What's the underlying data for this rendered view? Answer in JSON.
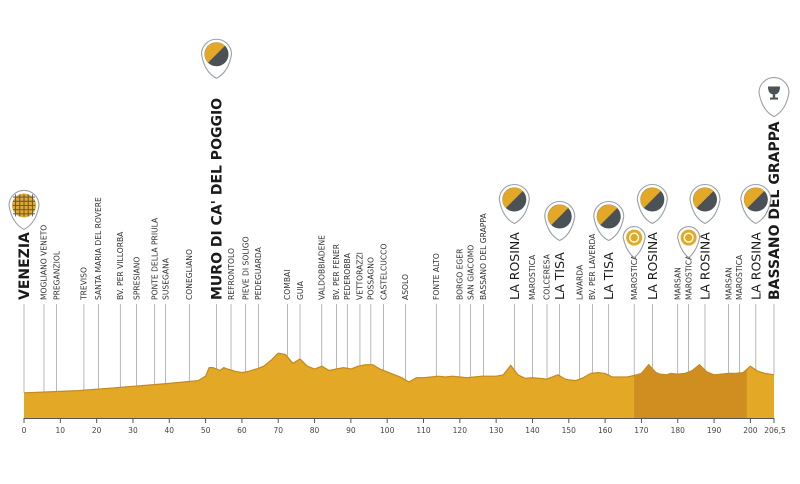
{
  "chart_data": {
    "type": "area",
    "title": "",
    "xlabel": "",
    "ylabel": "",
    "xlim": [
      0,
      206.5
    ],
    "x_ticks": [
      0,
      10,
      20,
      30,
      40,
      50,
      60,
      70,
      80,
      90,
      100,
      110,
      120,
      130,
      140,
      150,
      160,
      170,
      180,
      190,
      200
    ],
    "x_end_label": "206,5",
    "circuit_range": [
      168,
      199
    ],
    "colors": {
      "profile": "#e3a826",
      "circuit": "#cf8e1f",
      "outline": "#c38a1c",
      "icon_dark": "#4a5258",
      "icon_gold": "#e3a826"
    },
    "profile": [
      [
        0,
        35
      ],
      [
        5,
        36
      ],
      [
        10,
        37
      ],
      [
        15,
        38
      ],
      [
        20,
        40
      ],
      [
        25,
        42
      ],
      [
        30,
        44
      ],
      [
        35,
        46
      ],
      [
        40,
        48
      ],
      [
        44,
        50
      ],
      [
        48,
        52
      ],
      [
        50,
        58
      ],
      [
        51,
        70
      ],
      [
        52,
        70
      ],
      [
        53,
        68
      ],
      [
        54,
        66
      ],
      [
        55,
        70
      ],
      [
        56,
        68
      ],
      [
        58,
        65
      ],
      [
        60,
        63
      ],
      [
        62,
        65
      ],
      [
        64,
        68
      ],
      [
        66,
        72
      ],
      [
        68,
        80
      ],
      [
        70,
        90
      ],
      [
        72,
        88
      ],
      [
        74,
        76
      ],
      [
        76,
        82
      ],
      [
        78,
        72
      ],
      [
        80,
        68
      ],
      [
        82,
        72
      ],
      [
        84,
        66
      ],
      [
        86,
        68
      ],
      [
        88,
        70
      ],
      [
        90,
        68
      ],
      [
        92,
        72
      ],
      [
        94,
        74
      ],
      [
        96,
        74
      ],
      [
        98,
        68
      ],
      [
        100,
        64
      ],
      [
        102,
        60
      ],
      [
        104,
        56
      ],
      [
        106,
        50
      ],
      [
        108,
        56
      ],
      [
        110,
        56
      ],
      [
        112,
        57
      ],
      [
        114,
        58
      ],
      [
        116,
        57
      ],
      [
        118,
        58
      ],
      [
        120,
        57
      ],
      [
        122,
        56
      ],
      [
        124,
        57
      ],
      [
        126,
        58
      ],
      [
        128,
        58
      ],
      [
        130,
        58
      ],
      [
        132,
        60
      ],
      [
        134,
        73
      ],
      [
        136,
        60
      ],
      [
        138,
        55
      ],
      [
        140,
        56
      ],
      [
        142,
        55
      ],
      [
        144,
        54
      ],
      [
        146,
        58
      ],
      [
        147,
        60
      ],
      [
        149,
        54
      ],
      [
        150,
        53
      ],
      [
        152,
        52
      ],
      [
        154,
        56
      ],
      [
        156,
        62
      ],
      [
        158,
        63
      ],
      [
        160,
        62
      ],
      [
        162,
        57
      ],
      [
        164,
        57
      ],
      [
        166,
        57
      ],
      [
        168,
        59
      ],
      [
        170,
        62
      ],
      [
        172,
        74
      ],
      [
        174,
        63
      ],
      [
        175,
        61
      ],
      [
        177,
        60
      ],
      [
        178,
        62
      ],
      [
        180,
        61
      ],
      [
        182,
        62
      ],
      [
        184,
        66
      ],
      [
        186,
        74
      ],
      [
        188,
        64
      ],
      [
        190,
        60
      ],
      [
        192,
        61
      ],
      [
        194,
        62
      ],
      [
        196,
        62
      ],
      [
        198,
        63
      ],
      [
        200,
        72
      ],
      [
        202,
        65
      ],
      [
        204,
        62
      ],
      [
        206.5,
        60
      ]
    ],
    "waypoints": [
      {
        "km": 0,
        "name": "VENEZIA",
        "style": "big"
      },
      {
        "km": 5.5,
        "name": "MOGLIANO VENETO",
        "style": "small"
      },
      {
        "km": 9,
        "name": "PREGANZIOL",
        "style": "small"
      },
      {
        "km": 16.5,
        "name": "TREVISO",
        "style": "small"
      },
      {
        "km": 20.5,
        "name": "SANTA MARIA DEL ROVERE",
        "style": "small"
      },
      {
        "km": 26.5,
        "name": "BV. PER VILLORBA",
        "style": "small"
      },
      {
        "km": 31,
        "name": "SPRESIANO",
        "style": "small"
      },
      {
        "km": 36,
        "name": "PONTE DELLA PRIULA",
        "style": "small"
      },
      {
        "km": 39,
        "name": "SUSEGANA",
        "style": "small"
      },
      {
        "km": 45.5,
        "name": "CONEGLIANO",
        "style": "small"
      },
      {
        "km": 53,
        "name": "MURO DI CA' DEL POGGIO",
        "style": "big"
      },
      {
        "km": 57,
        "name": "REFRONTOLO",
        "style": "small"
      },
      {
        "km": 61,
        "name": "PIEVE DI SOLIGO",
        "style": "small"
      },
      {
        "km": 64.5,
        "name": "PEDEGUARDA",
        "style": "small"
      },
      {
        "km": 72.5,
        "name": "COMBAI",
        "style": "small"
      },
      {
        "km": 76,
        "name": "GUIA",
        "style": "small"
      },
      {
        "km": 82,
        "name": "VALDOBBIADENE",
        "style": "small"
      },
      {
        "km": 86,
        "name": "BV. PER FENER",
        "style": "small"
      },
      {
        "km": 89,
        "name": "PEDEROBBA",
        "style": "small"
      },
      {
        "km": 92.5,
        "name": "VETTORAZZI",
        "style": "small"
      },
      {
        "km": 95.5,
        "name": "POSSAGNO",
        "style": "small"
      },
      {
        "km": 99,
        "name": "CASTELCUCCO",
        "style": "small"
      },
      {
        "km": 105,
        "name": "ASOLO",
        "style": "small"
      },
      {
        "km": 113.5,
        "name": "FONTE ALTO",
        "style": "small"
      },
      {
        "km": 120,
        "name": "BORGO EGER",
        "style": "small"
      },
      {
        "km": 123,
        "name": "SAN GIACOMO",
        "style": "small"
      },
      {
        "km": 126.5,
        "name": "BASSANO DEL GRAPPA",
        "style": "small"
      },
      {
        "km": 135,
        "name": "LA ROSINA",
        "style": "mid"
      },
      {
        "km": 140,
        "name": "MAROSTICA",
        "style": "small"
      },
      {
        "km": 144,
        "name": "COLCERESA",
        "style": "small"
      },
      {
        "km": 147.5,
        "name": "LA TISA",
        "style": "mid"
      },
      {
        "km": 153,
        "name": "LAVARDA",
        "style": "small"
      },
      {
        "km": 156.5,
        "name": "BV. PER LAVERDA",
        "style": "small"
      },
      {
        "km": 161,
        "name": "LA TISA",
        "style": "mid"
      },
      {
        "km": 168,
        "name": "MAROSTICA",
        "style": "small"
      },
      {
        "km": 173,
        "name": "LA ROSINA",
        "style": "mid"
      },
      {
        "km": 180,
        "name": "MARSAN",
        "style": "small"
      },
      {
        "km": 183,
        "name": "MAROSTICA",
        "style": "small"
      },
      {
        "km": 187.5,
        "name": "LA ROSINA",
        "style": "mid"
      },
      {
        "km": 194,
        "name": "MARSAN",
        "style": "small"
      },
      {
        "km": 197,
        "name": "MAROSTICA",
        "style": "small"
      },
      {
        "km": 201.5,
        "name": "LA ROSINA",
        "style": "mid"
      },
      {
        "km": 206.5,
        "name": "BASSANO DEL GRAPPA",
        "style": "big"
      }
    ],
    "markers": [
      {
        "km": 0,
        "icon": "start-flag-icon",
        "kind": "start"
      },
      {
        "km": 53,
        "icon": "climb-gpm-icon",
        "kind": "climb"
      },
      {
        "km": 135,
        "icon": "climb-gpm-icon",
        "kind": "climb"
      },
      {
        "km": 147.5,
        "icon": "climb-gpm-icon",
        "kind": "climb"
      },
      {
        "km": 161,
        "icon": "climb-gpm-icon",
        "kind": "climb"
      },
      {
        "km": 168,
        "icon": "intermediate-sprint-icon",
        "kind": "sprint"
      },
      {
        "km": 173,
        "icon": "climb-gpm-icon",
        "kind": "climb"
      },
      {
        "km": 183,
        "icon": "intermediate-sprint-icon",
        "kind": "sprint"
      },
      {
        "km": 187.5,
        "icon": "climb-gpm-icon",
        "kind": "climb"
      },
      {
        "km": 201.5,
        "icon": "climb-gpm-icon",
        "kind": "climb"
      },
      {
        "km": 206.5,
        "icon": "finish-trophy-icon",
        "kind": "finish"
      }
    ]
  }
}
